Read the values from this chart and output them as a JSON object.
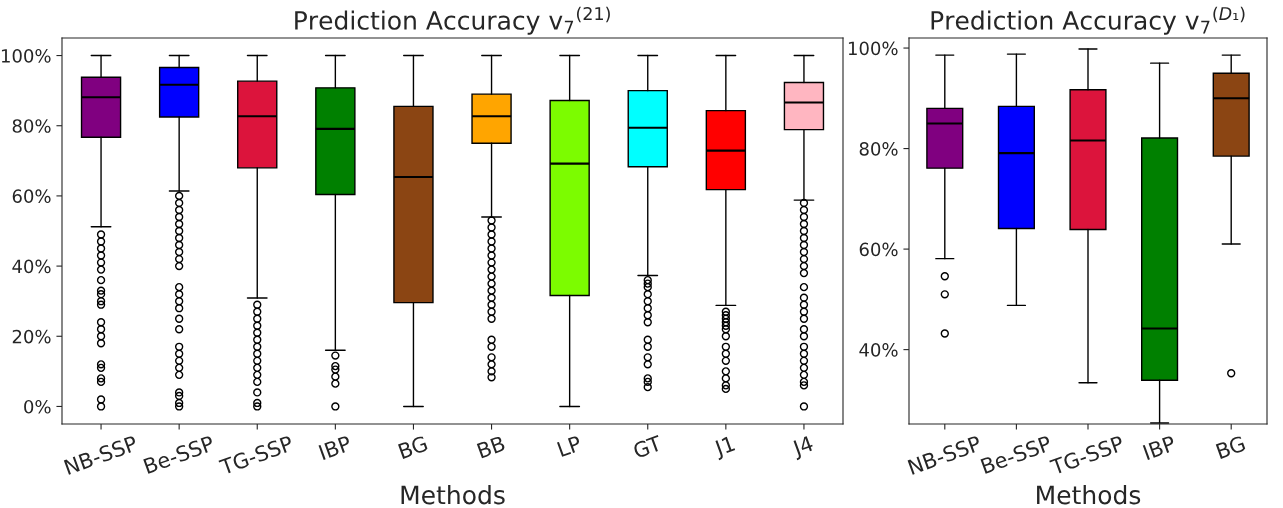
{
  "chart_data": [
    {
      "type": "box",
      "title": "Prediction Accuracy v$_{7}$$^{(21)}$",
      "xlabel": "Methods",
      "categories": [
        "NB-SSP",
        "Be-SSP",
        "TG-SSP",
        "IBP",
        "BG",
        "BB",
        "LP",
        "GT",
        "J1",
        "J4"
      ],
      "colors": [
        "#800080",
        "#0000ff",
        "#dc143c",
        "#008000",
        "#8b4513",
        "#ffa500",
        "#7cfc00",
        "#00ffff",
        "#ff0000",
        "#ffb6c1"
      ],
      "boxes": [
        {
          "low": 51.2,
          "q1": 76.7,
          "median": 88.1,
          "q3": 93.8,
          "high": 100,
          "outliers": [
            49,
            47,
            45,
            43,
            41,
            39,
            36,
            33,
            32,
            30,
            29,
            24,
            22,
            20,
            18,
            12,
            11,
            8,
            7,
            2,
            0
          ]
        },
        {
          "low": 61.4,
          "q1": 82.5,
          "median": 91.7,
          "q3": 96.6,
          "high": 100,
          "outliers": [
            60,
            58,
            56,
            54,
            52,
            50,
            48,
            46,
            44,
            42,
            40,
            34,
            32,
            30,
            28,
            25,
            22,
            17,
            15,
            13,
            11,
            9,
            4,
            3,
            1,
            0
          ]
        },
        {
          "low": 30.9,
          "q1": 68,
          "median": 82.7,
          "q3": 92.7,
          "high": 100,
          "outliers": [
            29,
            27,
            25,
            23,
            21,
            19,
            17,
            15,
            13,
            11,
            9,
            7,
            4,
            1,
            0
          ]
        },
        {
          "low": 16,
          "q1": 60.4,
          "median": 79.1,
          "q3": 90.8,
          "high": 100,
          "outliers": [
            14.5,
            11.5,
            10.5,
            8.5,
            6.5,
            0
          ]
        },
        {
          "low": 0,
          "q1": 29.6,
          "median": 65.4,
          "q3": 85.5,
          "high": 100
        },
        {
          "low": 54,
          "q1": 75,
          "median": 82.7,
          "q3": 89,
          "high": 100,
          "outliers": [
            53,
            51,
            49,
            47,
            45,
            43,
            41,
            39,
            37,
            35,
            33,
            31,
            29,
            27,
            25,
            19,
            17,
            14,
            12,
            10,
            8.3
          ]
        },
        {
          "low": 0,
          "q1": 31.6,
          "median": 69.2,
          "q3": 87.2,
          "high": 100
        },
        {
          "low": 37.3,
          "q1": 68.3,
          "median": 79.4,
          "q3": 90,
          "high": 100,
          "outliers": [
            36,
            35,
            34,
            32,
            30,
            28,
            26,
            24,
            19,
            17,
            14,
            12,
            8,
            7,
            5.5
          ]
        },
        {
          "low": 28.8,
          "q1": 61.8,
          "median": 72.9,
          "q3": 84.3,
          "high": 100,
          "outliers": [
            27,
            26,
            25,
            24,
            23,
            22,
            20,
            17,
            15,
            13,
            10,
            8,
            6,
            5
          ]
        },
        {
          "low": 58.8,
          "q1": 78.9,
          "median": 86.6,
          "q3": 92.3,
          "high": 100,
          "outliers": [
            58,
            56,
            54,
            52,
            50,
            48,
            46,
            44,
            42,
            40,
            38,
            34,
            31,
            29,
            27,
            25,
            22,
            20,
            17,
            15,
            13,
            11,
            9,
            7,
            6,
            0
          ]
        }
      ],
      "ylim": [
        -5,
        105
      ],
      "yticks": [
        {
          "value": 0,
          "label": "0%"
        },
        {
          "value": 20,
          "label": "20%"
        },
        {
          "value": 40,
          "label": "40%"
        },
        {
          "value": 60,
          "label": "60%"
        },
        {
          "value": 80,
          "label": "80%"
        },
        {
          "value": 100,
          "label": "100%"
        }
      ]
    },
    {
      "type": "box",
      "title": "Prediction Accuracy v$_{7}$$^{(D₁)}$",
      "xlabel": "Methods",
      "categories": [
        "NB-SSP",
        "Be-SSP",
        "TG-SSP",
        "IBP",
        "BG"
      ],
      "colors": [
        "#800080",
        "#0000ff",
        "#dc143c",
        "#008000",
        "#8b4513"
      ],
      "boxes": [
        {
          "low": 58.1,
          "q1": 76.1,
          "median": 85,
          "q3": 88,
          "high": 98.6,
          "outliers": [
            54.6,
            51,
            43.2
          ]
        },
        {
          "low": 48.8,
          "q1": 64.1,
          "median": 79.1,
          "q3": 88.4,
          "high": 98.8
        },
        {
          "low": 33.4,
          "q1": 63.9,
          "median": 81.6,
          "q3": 91.7,
          "high": 99.8
        },
        {
          "low": 25.4,
          "q1": 33.9,
          "median": 44.2,
          "q3": 82.1,
          "high": 97
        },
        {
          "low": 61,
          "q1": 78.5,
          "median": 90,
          "q3": 95,
          "high": 98.6,
          "outliers": [
            35.3
          ]
        }
      ],
      "ylim": [
        25.2,
        102
      ],
      "yticks": [
        {
          "value": 40,
          "label": "40%"
        },
        {
          "value": 60,
          "label": "60%"
        },
        {
          "value": 80,
          "label": "80%"
        },
        {
          "value": 100,
          "label": "100%"
        }
      ]
    }
  ]
}
